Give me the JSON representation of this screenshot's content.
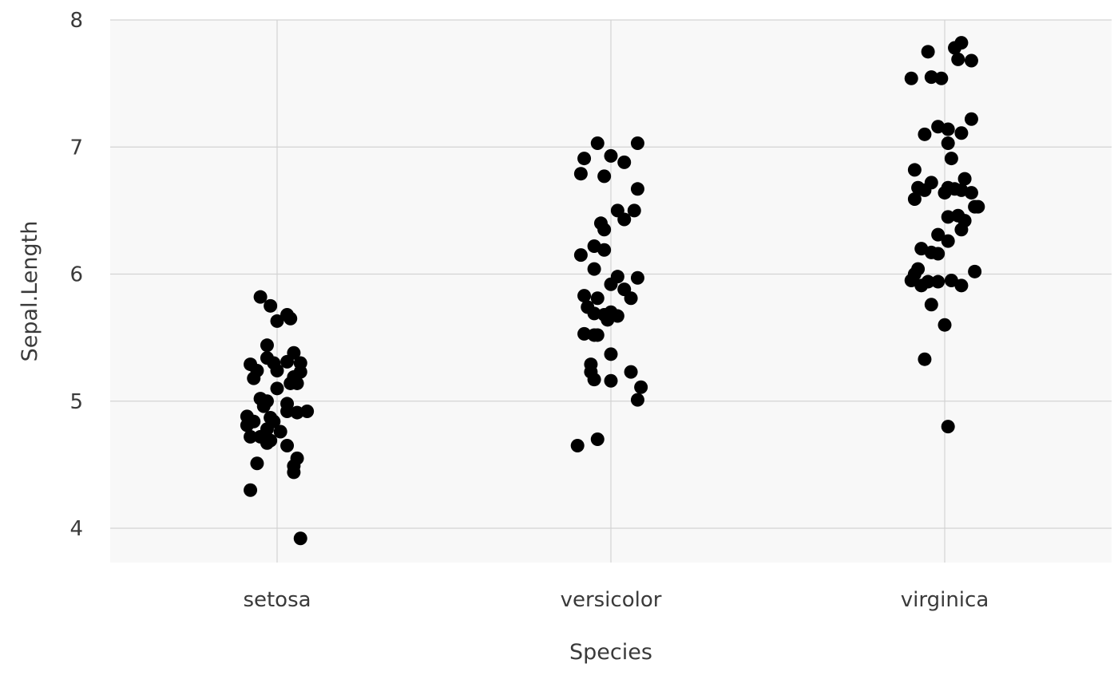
{
  "chart_data": {
    "type": "scatter",
    "title": "",
    "xlabel": "Species",
    "ylabel": "Sepal.Length",
    "categories": [
      "setosa",
      "versicolor",
      "virginica"
    ],
    "ylim": [
      3.73,
      8.0
    ],
    "yticks": [
      4,
      5,
      6,
      7,
      8
    ],
    "grid": true,
    "legend": "none",
    "colors": {
      "point": "#000000",
      "panel": "#f8f8f8",
      "grid": "#d3d3d3"
    },
    "points": [
      {
        "category": "setosa",
        "jitter": -0.05,
        "y": 5.82
      },
      {
        "category": "setosa",
        "jitter": -0.02,
        "y": 5.75
      },
      {
        "category": "setosa",
        "jitter": 0.03,
        "y": 5.68
      },
      {
        "category": "setosa",
        "jitter": 0.04,
        "y": 5.65
      },
      {
        "category": "setosa",
        "jitter": 0.0,
        "y": 5.63
      },
      {
        "category": "setosa",
        "jitter": -0.03,
        "y": 5.44
      },
      {
        "category": "setosa",
        "jitter": 0.05,
        "y": 5.38
      },
      {
        "category": "setosa",
        "jitter": -0.03,
        "y": 5.34
      },
      {
        "category": "setosa",
        "jitter": -0.01,
        "y": 5.3
      },
      {
        "category": "setosa",
        "jitter": 0.03,
        "y": 5.31
      },
      {
        "category": "setosa",
        "jitter": 0.07,
        "y": 5.3
      },
      {
        "category": "setosa",
        "jitter": -0.08,
        "y": 5.29
      },
      {
        "category": "setosa",
        "jitter": -0.06,
        "y": 5.24
      },
      {
        "category": "setosa",
        "jitter": 0.0,
        "y": 5.24
      },
      {
        "category": "setosa",
        "jitter": 0.07,
        "y": 5.23
      },
      {
        "category": "setosa",
        "jitter": -0.07,
        "y": 5.18
      },
      {
        "category": "setosa",
        "jitter": 0.05,
        "y": 5.19
      },
      {
        "category": "setosa",
        "jitter": 0.04,
        "y": 5.14
      },
      {
        "category": "setosa",
        "jitter": 0.06,
        "y": 5.14
      },
      {
        "category": "setosa",
        "jitter": 0.0,
        "y": 5.1
      },
      {
        "category": "setosa",
        "jitter": -0.05,
        "y": 5.02
      },
      {
        "category": "setosa",
        "jitter": -0.03,
        "y": 5.0
      },
      {
        "category": "setosa",
        "jitter": 0.03,
        "y": 4.98
      },
      {
        "category": "setosa",
        "jitter": -0.04,
        "y": 4.96
      },
      {
        "category": "setosa",
        "jitter": 0.03,
        "y": 4.92
      },
      {
        "category": "setosa",
        "jitter": 0.06,
        "y": 4.91
      },
      {
        "category": "setosa",
        "jitter": 0.09,
        "y": 4.92
      },
      {
        "category": "setosa",
        "jitter": -0.09,
        "y": 4.88
      },
      {
        "category": "setosa",
        "jitter": -0.02,
        "y": 4.87
      },
      {
        "category": "setosa",
        "jitter": -0.07,
        "y": 4.84
      },
      {
        "category": "setosa",
        "jitter": -0.01,
        "y": 4.84
      },
      {
        "category": "setosa",
        "jitter": -0.09,
        "y": 4.81
      },
      {
        "category": "setosa",
        "jitter": -0.03,
        "y": 4.78
      },
      {
        "category": "setosa",
        "jitter": 0.01,
        "y": 4.76
      },
      {
        "category": "setosa",
        "jitter": -0.08,
        "y": 4.72
      },
      {
        "category": "setosa",
        "jitter": -0.05,
        "y": 4.72
      },
      {
        "category": "setosa",
        "jitter": -0.02,
        "y": 4.69
      },
      {
        "category": "setosa",
        "jitter": -0.03,
        "y": 4.67
      },
      {
        "category": "setosa",
        "jitter": 0.03,
        "y": 4.65
      },
      {
        "category": "setosa",
        "jitter": 0.06,
        "y": 4.55
      },
      {
        "category": "setosa",
        "jitter": -0.06,
        "y": 4.51
      },
      {
        "category": "setosa",
        "jitter": 0.05,
        "y": 4.49
      },
      {
        "category": "setosa",
        "jitter": 0.05,
        "y": 4.44
      },
      {
        "category": "setosa",
        "jitter": -0.08,
        "y": 4.3
      },
      {
        "category": "setosa",
        "jitter": 0.07,
        "y": 3.92
      },
      {
        "category": "versicolor",
        "jitter": -0.04,
        "y": 7.03
      },
      {
        "category": "versicolor",
        "jitter": 0.08,
        "y": 7.03
      },
      {
        "category": "versicolor",
        "jitter": 0.0,
        "y": 6.93
      },
      {
        "category": "versicolor",
        "jitter": -0.08,
        "y": 6.91
      },
      {
        "category": "versicolor",
        "jitter": 0.04,
        "y": 6.88
      },
      {
        "category": "versicolor",
        "jitter": -0.09,
        "y": 6.79
      },
      {
        "category": "versicolor",
        "jitter": -0.02,
        "y": 6.77
      },
      {
        "category": "versicolor",
        "jitter": 0.08,
        "y": 6.67
      },
      {
        "category": "versicolor",
        "jitter": 0.02,
        "y": 6.5
      },
      {
        "category": "versicolor",
        "jitter": 0.07,
        "y": 6.5
      },
      {
        "category": "versicolor",
        "jitter": 0.04,
        "y": 6.43
      },
      {
        "category": "versicolor",
        "jitter": -0.03,
        "y": 6.4
      },
      {
        "category": "versicolor",
        "jitter": -0.02,
        "y": 6.35
      },
      {
        "category": "versicolor",
        "jitter": -0.05,
        "y": 6.22
      },
      {
        "category": "versicolor",
        "jitter": -0.02,
        "y": 6.19
      },
      {
        "category": "versicolor",
        "jitter": -0.09,
        "y": 6.15
      },
      {
        "category": "versicolor",
        "jitter": -0.05,
        "y": 6.04
      },
      {
        "category": "versicolor",
        "jitter": 0.02,
        "y": 5.98
      },
      {
        "category": "versicolor",
        "jitter": 0.08,
        "y": 5.97
      },
      {
        "category": "versicolor",
        "jitter": 0.0,
        "y": 5.92
      },
      {
        "category": "versicolor",
        "jitter": 0.04,
        "y": 5.88
      },
      {
        "category": "versicolor",
        "jitter": -0.08,
        "y": 5.83
      },
      {
        "category": "versicolor",
        "jitter": -0.04,
        "y": 5.81
      },
      {
        "category": "versicolor",
        "jitter": 0.06,
        "y": 5.81
      },
      {
        "category": "versicolor",
        "jitter": -0.07,
        "y": 5.74
      },
      {
        "category": "versicolor",
        "jitter": 0.0,
        "y": 5.7
      },
      {
        "category": "versicolor",
        "jitter": -0.05,
        "y": 5.69
      },
      {
        "category": "versicolor",
        "jitter": -0.02,
        "y": 5.68
      },
      {
        "category": "versicolor",
        "jitter": 0.02,
        "y": 5.67
      },
      {
        "category": "versicolor",
        "jitter": -0.01,
        "y": 5.64
      },
      {
        "category": "versicolor",
        "jitter": -0.08,
        "y": 5.53
      },
      {
        "category": "versicolor",
        "jitter": -0.05,
        "y": 5.52
      },
      {
        "category": "versicolor",
        "jitter": -0.04,
        "y": 5.52
      },
      {
        "category": "versicolor",
        "jitter": 0.0,
        "y": 5.37
      },
      {
        "category": "versicolor",
        "jitter": -0.06,
        "y": 5.29
      },
      {
        "category": "versicolor",
        "jitter": -0.06,
        "y": 5.23
      },
      {
        "category": "versicolor",
        "jitter": 0.06,
        "y": 5.23
      },
      {
        "category": "versicolor",
        "jitter": -0.05,
        "y": 5.17
      },
      {
        "category": "versicolor",
        "jitter": 0.0,
        "y": 5.16
      },
      {
        "category": "versicolor",
        "jitter": 0.09,
        "y": 5.11
      },
      {
        "category": "versicolor",
        "jitter": 0.08,
        "y": 5.01
      },
      {
        "category": "versicolor",
        "jitter": -0.04,
        "y": 4.7
      },
      {
        "category": "versicolor",
        "jitter": -0.1,
        "y": 4.65
      },
      {
        "category": "virginica",
        "jitter": 0.05,
        "y": 7.82
      },
      {
        "category": "virginica",
        "jitter": 0.03,
        "y": 7.78
      },
      {
        "category": "virginica",
        "jitter": -0.05,
        "y": 7.75
      },
      {
        "category": "virginica",
        "jitter": 0.04,
        "y": 7.69
      },
      {
        "category": "virginica",
        "jitter": 0.08,
        "y": 7.68
      },
      {
        "category": "virginica",
        "jitter": -0.04,
        "y": 7.55
      },
      {
        "category": "virginica",
        "jitter": -0.01,
        "y": 7.54
      },
      {
        "category": "virginica",
        "jitter": -0.1,
        "y": 7.54
      },
      {
        "category": "virginica",
        "jitter": 0.08,
        "y": 7.22
      },
      {
        "category": "virginica",
        "jitter": -0.02,
        "y": 7.16
      },
      {
        "category": "virginica",
        "jitter": 0.01,
        "y": 7.14
      },
      {
        "category": "virginica",
        "jitter": 0.05,
        "y": 7.11
      },
      {
        "category": "virginica",
        "jitter": -0.06,
        "y": 7.1
      },
      {
        "category": "virginica",
        "jitter": 0.01,
        "y": 7.03
      },
      {
        "category": "virginica",
        "jitter": 0.02,
        "y": 6.91
      },
      {
        "category": "virginica",
        "jitter": -0.09,
        "y": 6.82
      },
      {
        "category": "virginica",
        "jitter": 0.06,
        "y": 6.75
      },
      {
        "category": "virginica",
        "jitter": -0.04,
        "y": 6.72
      },
      {
        "category": "virginica",
        "jitter": -0.08,
        "y": 6.68
      },
      {
        "category": "virginica",
        "jitter": 0.01,
        "y": 6.68
      },
      {
        "category": "virginica",
        "jitter": 0.03,
        "y": 6.67
      },
      {
        "category": "virginica",
        "jitter": -0.06,
        "y": 6.66
      },
      {
        "category": "virginica",
        "jitter": 0.05,
        "y": 6.66
      },
      {
        "category": "virginica",
        "jitter": 0.0,
        "y": 6.64
      },
      {
        "category": "virginica",
        "jitter": 0.08,
        "y": 6.64
      },
      {
        "category": "virginica",
        "jitter": -0.09,
        "y": 6.59
      },
      {
        "category": "virginica",
        "jitter": 0.09,
        "y": 6.53
      },
      {
        "category": "virginica",
        "jitter": 0.1,
        "y": 6.53
      },
      {
        "category": "virginica",
        "jitter": 0.04,
        "y": 6.46
      },
      {
        "category": "virginica",
        "jitter": 0.01,
        "y": 6.45
      },
      {
        "category": "virginica",
        "jitter": 0.06,
        "y": 6.42
      },
      {
        "category": "virginica",
        "jitter": 0.05,
        "y": 6.35
      },
      {
        "category": "virginica",
        "jitter": -0.02,
        "y": 6.31
      },
      {
        "category": "virginica",
        "jitter": 0.01,
        "y": 6.26
      },
      {
        "category": "virginica",
        "jitter": -0.07,
        "y": 6.2
      },
      {
        "category": "virginica",
        "jitter": -0.04,
        "y": 6.17
      },
      {
        "category": "virginica",
        "jitter": -0.02,
        "y": 6.16
      },
      {
        "category": "virginica",
        "jitter": 0.09,
        "y": 6.02
      },
      {
        "category": "virginica",
        "jitter": -0.08,
        "y": 6.04
      },
      {
        "category": "virginica",
        "jitter": -0.09,
        "y": 6.0
      },
      {
        "category": "virginica",
        "jitter": -0.1,
        "y": 5.95
      },
      {
        "category": "virginica",
        "jitter": -0.05,
        "y": 5.94
      },
      {
        "category": "virginica",
        "jitter": -0.02,
        "y": 5.94
      },
      {
        "category": "virginica",
        "jitter": 0.02,
        "y": 5.95
      },
      {
        "category": "virginica",
        "jitter": -0.07,
        "y": 5.91
      },
      {
        "category": "virginica",
        "jitter": 0.05,
        "y": 5.91
      },
      {
        "category": "virginica",
        "jitter": -0.04,
        "y": 5.76
      },
      {
        "category": "virginica",
        "jitter": 0.0,
        "y": 5.6
      },
      {
        "category": "virginica",
        "jitter": -0.06,
        "y": 5.33
      },
      {
        "category": "virginica",
        "jitter": 0.01,
        "y": 4.8
      }
    ]
  }
}
